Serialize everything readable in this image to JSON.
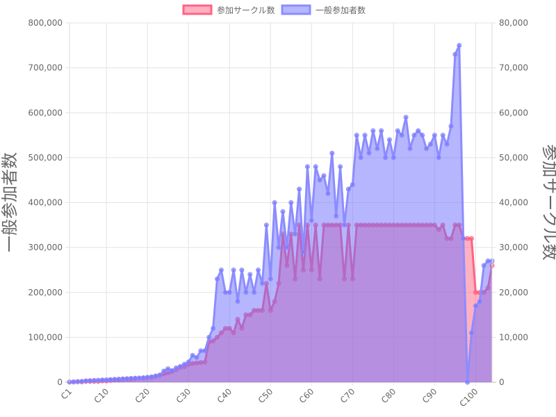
{
  "chart_data": {
    "type": "line",
    "fill": "area",
    "grid": true,
    "legend_position": "top",
    "categories": [
      "C1",
      "C2",
      "C3",
      "C4",
      "C5",
      "C6",
      "C7",
      "C8",
      "C9",
      "C10",
      "C11",
      "C12",
      "C13",
      "C14",
      "C15",
      "C16",
      "C17",
      "C18",
      "C19",
      "C20",
      "C21",
      "C22",
      "C23",
      "C24",
      "C25",
      "C26",
      "C27",
      "C28",
      "C29",
      "C30",
      "C31",
      "C32",
      "C33",
      "C34",
      "C35",
      "C36",
      "C37",
      "C38",
      "C39",
      "C40",
      "C41",
      "C42",
      "C43",
      "C44",
      "C45",
      "C46",
      "C47",
      "C48",
      "C49",
      "C50",
      "C51",
      "C52",
      "C53",
      "C54",
      "C55",
      "C56",
      "C57",
      "C58",
      "C59",
      "C60",
      "C61",
      "C62",
      "C63",
      "C64",
      "C65",
      "C66",
      "C67",
      "C68",
      "C69",
      "C70",
      "C71",
      "C72",
      "C73",
      "C74",
      "C75",
      "C76",
      "C77",
      "C78",
      "C79",
      "C80",
      "C81",
      "C82",
      "C83",
      "C84",
      "C85",
      "C86",
      "C87",
      "C88",
      "C89",
      "C90",
      "C91",
      "C92",
      "C93",
      "C94",
      "C95",
      "C96",
      "C97",
      "C98",
      "C99",
      "C100",
      "C101",
      "C102",
      "C103",
      "C104"
    ],
    "x_tick_labels": [
      "C1",
      "C10",
      "C20",
      "C30",
      "C40",
      "C50",
      "C60",
      "C70",
      "C80",
      "C90",
      "C100"
    ],
    "y_left": {
      "label": "一般参加者数",
      "ylim": [
        0,
        800000
      ],
      "ticks": [
        "0",
        "100,000",
        "200,000",
        "300,000",
        "400,000",
        "500,000",
        "600,000",
        "700,000",
        "800,000"
      ]
    },
    "y_right": {
      "label": "参加サークル数",
      "ylim": [
        0,
        80000
      ],
      "ticks": [
        "0",
        "10,000",
        "20,000",
        "30,000",
        "40,000",
        "50,000",
        "60,000",
        "70,000",
        "80,000"
      ]
    },
    "series": [
      {
        "name": "参加サークル数",
        "axis": "right",
        "color": "#ff6384",
        "fill": "rgba(255,99,132,0.5)",
        "values": [
          32,
          50,
          100,
          100,
          200,
          200,
          200,
          200,
          300,
          300,
          400,
          500,
          500,
          600,
          700,
          700,
          800,
          900,
          900,
          1000,
          1100,
          1300,
          1500,
          1900,
          2100,
          2400,
          2800,
          3300,
          3500,
          4000,
          4200,
          4300,
          4400,
          4500,
          9000,
          9200,
          10000,
          11000,
          12000,
          12000,
          11000,
          14000,
          12000,
          15000,
          15000,
          16000,
          16000,
          16000,
          22000,
          16000,
          18000,
          22000,
          33000,
          26000,
          33000,
          23000,
          35000,
          25000,
          35000,
          25000,
          35000,
          23000,
          35000,
          35000,
          35000,
          35000,
          35000,
          23000,
          35000,
          23000,
          35000,
          35000,
          35000,
          35000,
          35000,
          35000,
          35000,
          35000,
          35000,
          35000,
          35000,
          35000,
          35000,
          35000,
          35000,
          35000,
          35000,
          35000,
          35000,
          35000,
          34000,
          35000,
          32000,
          32000,
          35000,
          35000,
          32000,
          32000,
          32000,
          20000,
          20000,
          20000,
          21000,
          26000
        ]
      },
      {
        "name": "一般参加者数",
        "axis": "left",
        "color": "#8c8cff",
        "fill": "rgba(110,110,255,0.5)",
        "values": [
          700,
          1000,
          1500,
          2000,
          3000,
          3500,
          4000,
          4500,
          5000,
          5500,
          6000,
          6500,
          7000,
          7500,
          8000,
          8500,
          9000,
          9500,
          10000,
          11000,
          12000,
          14000,
          16000,
          25000,
          30000,
          26000,
          32000,
          35000,
          40000,
          45000,
          60000,
          55000,
          70000,
          70000,
          100000,
          120000,
          230000,
          250000,
          200000,
          200000,
          250000,
          180000,
          250000,
          200000,
          240000,
          200000,
          250000,
          220000,
          350000,
          230000,
          400000,
          300000,
          380000,
          300000,
          400000,
          330000,
          430000,
          290000,
          480000,
          360000,
          480000,
          450000,
          460000,
          420000,
          510000,
          370000,
          480000,
          350000,
          430000,
          440000,
          550000,
          500000,
          550000,
          510000,
          560000,
          520000,
          560000,
          500000,
          540000,
          500000,
          560000,
          550000,
          590000,
          520000,
          550000,
          560000,
          550000,
          520000,
          530000,
          550000,
          500000,
          550000,
          530000,
          570000,
          730000,
          750000,
          320000,
          0,
          110000,
          170000,
          180000,
          260000,
          270000,
          270000
        ]
      }
    ]
  }
}
